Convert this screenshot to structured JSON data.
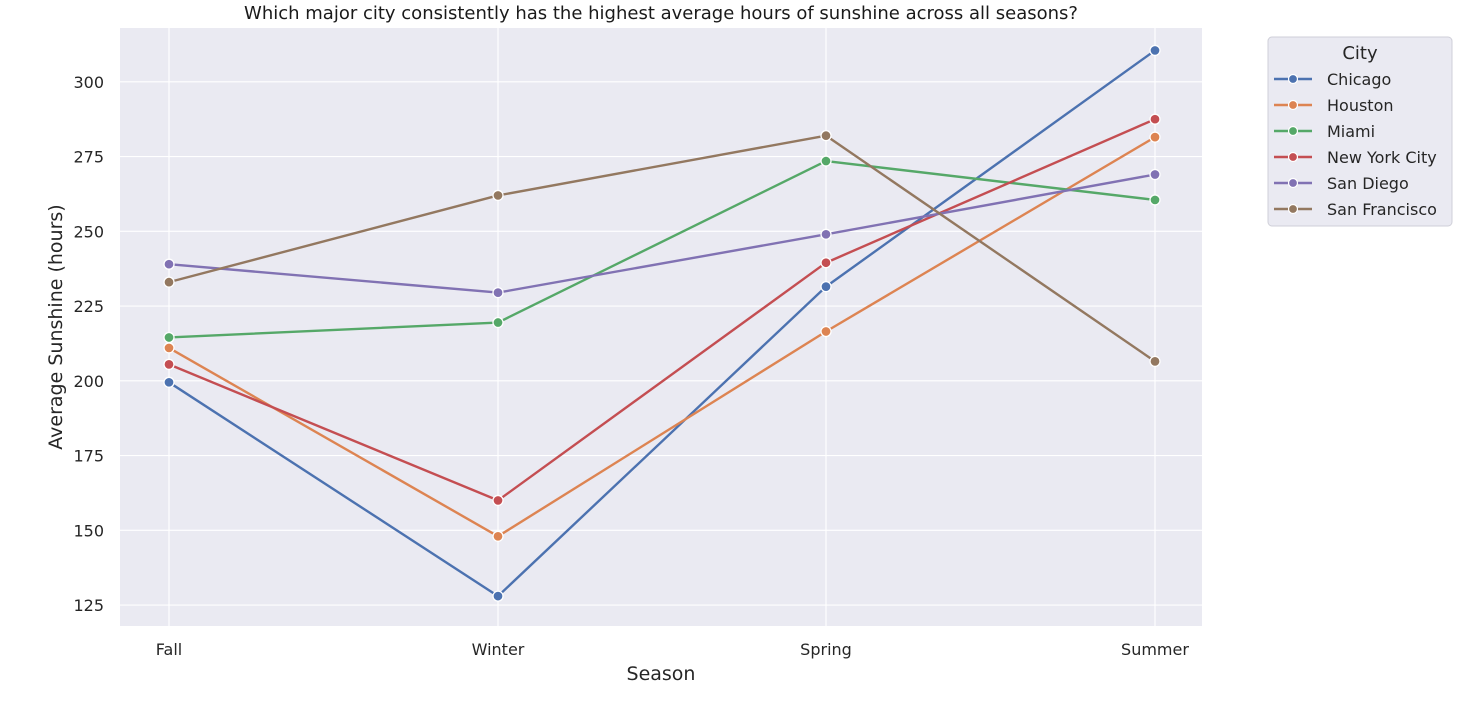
{
  "chart_data": {
    "type": "line",
    "title": "Which major city consistently has the highest average hours of sunshine across all seasons?",
    "xlabel": "Season",
    "ylabel": "Average Sunshine (hours)",
    "categories": [
      "Fall",
      "Winter",
      "Spring",
      "Summer"
    ],
    "ylim": [
      118,
      318
    ],
    "yticks": [
      125,
      150,
      175,
      200,
      225,
      250,
      275,
      300
    ],
    "grid": true,
    "background": "#eaeaf2",
    "grid_color": "#ffffff",
    "legend": {
      "title": "City",
      "placement": "outside-top-right"
    },
    "series": [
      {
        "name": "Chicago",
        "color": "#4c72b0",
        "values": [
          199.5,
          128.0,
          231.5,
          310.5
        ]
      },
      {
        "name": "Houston",
        "color": "#dd8452",
        "values": [
          211.0,
          148.0,
          216.5,
          281.5
        ]
      },
      {
        "name": "Miami",
        "color": "#55a868",
        "values": [
          214.5,
          219.5,
          273.5,
          260.5
        ]
      },
      {
        "name": "New York City",
        "color": "#c44e52",
        "values": [
          205.5,
          160.0,
          239.5,
          287.5
        ]
      },
      {
        "name": "San Diego",
        "color": "#8172b3",
        "values": [
          239.0,
          229.5,
          249.0,
          269.0
        ]
      },
      {
        "name": "San Francisco",
        "color": "#937860",
        "values": [
          233.0,
          262.0,
          282.0,
          206.5
        ]
      }
    ]
  }
}
